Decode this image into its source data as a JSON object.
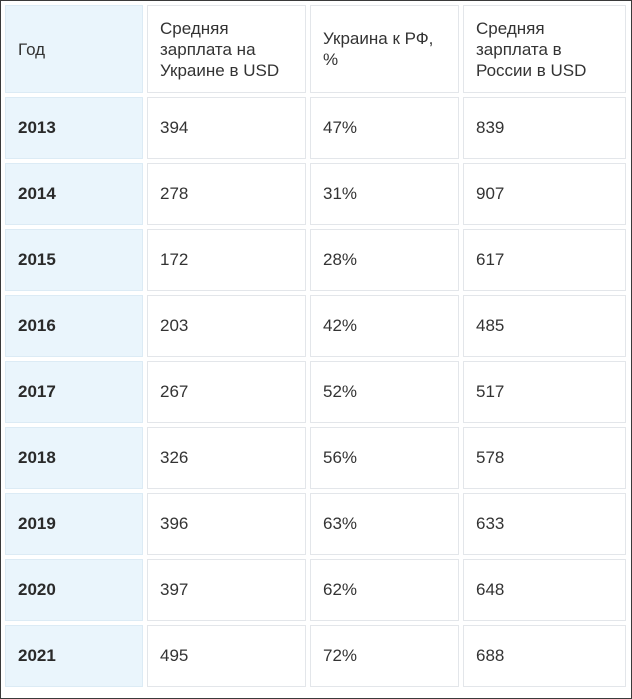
{
  "table": {
    "headers": [
      "Год",
      "Средняя зарплата на Украине в USD",
      "Украина к РФ, %",
      "Средняя зарплата в России в USD"
    ],
    "rows": [
      [
        "2013",
        "394",
        "47%",
        "839"
      ],
      [
        "2014",
        "278",
        "31%",
        "907"
      ],
      [
        "2015",
        "172",
        "28%",
        "617"
      ],
      [
        "2016",
        "203",
        "42%",
        "485"
      ],
      [
        "2017",
        "267",
        "52%",
        "517"
      ],
      [
        "2018",
        "326",
        "56%",
        "578"
      ],
      [
        "2019",
        "396",
        "63%",
        "633"
      ],
      [
        "2020",
        "397",
        "62%",
        "648"
      ],
      [
        "2021",
        "495",
        "72%",
        "688"
      ]
    ]
  },
  "colors": {
    "year_column_bg": "#eaf5fc",
    "cell_border": "#e3e6ea",
    "text": "#333333"
  }
}
